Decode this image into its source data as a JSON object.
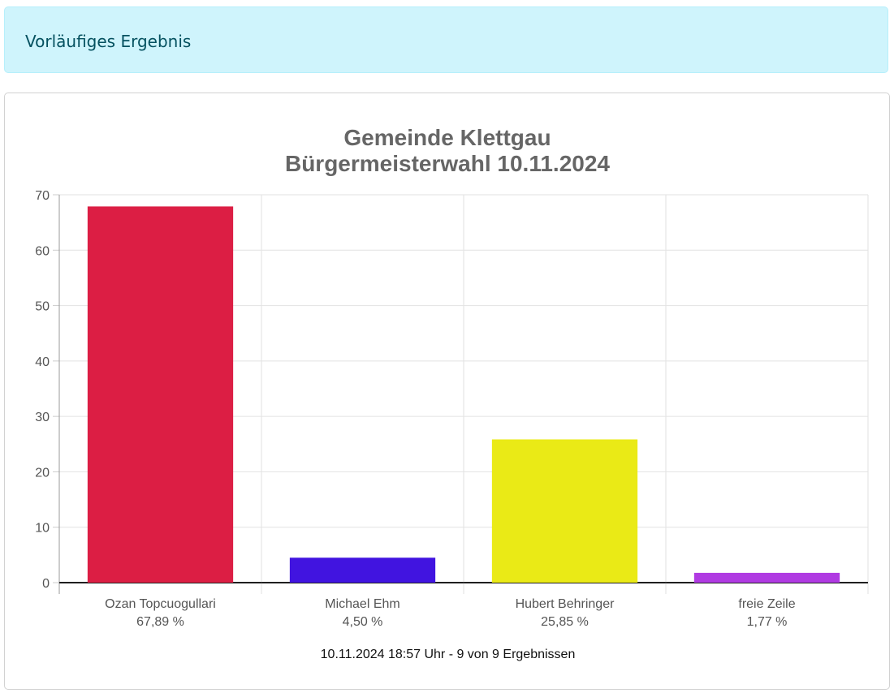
{
  "alert": {
    "text": "Vorläufiges Ergebnis"
  },
  "chart_data": {
    "type": "bar",
    "title": [
      "Gemeinde Klettgau",
      "Bürgermeisterwahl 10.11.2024"
    ],
    "categories": [
      "Ozan Topcuogullari",
      "Michael Ehm",
      "Hubert Behringer",
      "freie Zeile"
    ],
    "category_sublabels": [
      "67,89 %",
      "4,50 %",
      "25,85 %",
      "1,77 %"
    ],
    "values": [
      67.89,
      4.5,
      25.85,
      1.77
    ],
    "colors": [
      "#dc1e44",
      "#4114e0",
      "#eaea16",
      "#b03ae2"
    ],
    "ylim": [
      0,
      70
    ],
    "yticks": [
      0,
      10,
      20,
      30,
      40,
      50,
      60,
      70
    ],
    "grid": true,
    "legend": "none"
  },
  "footer": {
    "text": "10.11.2024 18:57 Uhr - 9 von 9 Ergebnissen"
  }
}
